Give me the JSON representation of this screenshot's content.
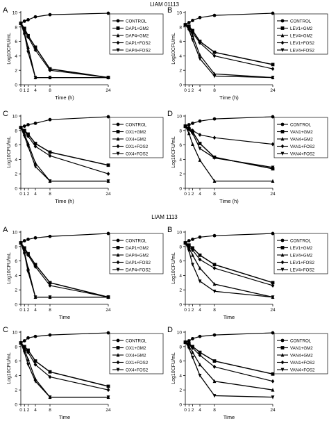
{
  "groups": [
    {
      "title": "LIAM 01113",
      "xlabel": "Time (h)"
    },
    {
      "title": "LIAM 1113",
      "xlabel": "Time"
    }
  ],
  "chart_data": [
    {
      "type": "line",
      "panel_label": "A",
      "xlabel": "Time (h)",
      "ylabel": "Log10CFU/mL",
      "x": [
        0,
        1,
        2,
        4,
        8,
        24
      ],
      "xticks": [
        "0",
        "1",
        "2",
        "4",
        "8",
        "24"
      ],
      "xlim": [
        0,
        24
      ],
      "ylim": [
        0,
        10
      ],
      "yticks": [
        0,
        2,
        4,
        6,
        8,
        10
      ],
      "series": [
        {
          "name": "CONTROL",
          "values": [
            8.5,
            8.8,
            9.0,
            9.4,
            9.7,
            9.9
          ]
        },
        {
          "name": "DAP1+GM2",
          "values": [
            8.5,
            7.8,
            6.8,
            5.2,
            2.2,
            1.0
          ]
        },
        {
          "name": "DAP4+GM2",
          "values": [
            8.5,
            7.2,
            5.2,
            1.0,
            1.0,
            1.0
          ]
        },
        {
          "name": "DAP1+FOS2",
          "values": [
            8.5,
            7.6,
            6.6,
            4.8,
            2.0,
            1.0
          ]
        },
        {
          "name": "DAP4+FOS2",
          "values": [
            8.5,
            7.0,
            4.5,
            1.0,
            1.0,
            1.0
          ]
        }
      ]
    },
    {
      "type": "line",
      "panel_label": "B",
      "xlabel": "Time (h)",
      "ylabel": "Log10CFU/mL",
      "x": [
        0,
        1,
        2,
        4,
        8,
        24
      ],
      "xticks": [
        "0",
        "1",
        "2",
        "4",
        "8",
        "24"
      ],
      "xlim": [
        0,
        24
      ],
      "ylim": [
        0,
        10
      ],
      "yticks": [
        0,
        2,
        4,
        6,
        8,
        10
      ],
      "series": [
        {
          "name": "CONTROL",
          "values": [
            8.3,
            8.6,
            8.9,
            9.3,
            9.6,
            9.9
          ]
        },
        {
          "name": "LEV1+GM2",
          "values": [
            8.3,
            8.1,
            7.5,
            6.0,
            4.5,
            2.8
          ]
        },
        {
          "name": "LEV4+GM2",
          "values": [
            8.3,
            7.8,
            6.8,
            4.1,
            1.5,
            1.0
          ]
        },
        {
          "name": "LEV1+FOS2",
          "values": [
            8.3,
            8.0,
            7.2,
            5.8,
            4.0,
            2.2
          ]
        },
        {
          "name": "LEV4+FOS2",
          "values": [
            8.3,
            7.6,
            6.2,
            3.6,
            1.2,
            1.0
          ]
        }
      ]
    },
    {
      "type": "line",
      "panel_label": "C",
      "xlabel": "Time (h)",
      "ylabel": "Log10CFU/mL",
      "x": [
        0,
        1,
        2,
        4,
        8,
        24
      ],
      "xticks": [
        "0",
        "1",
        "2",
        "4",
        "8",
        "24"
      ],
      "xlim": [
        0,
        24
      ],
      "ylim": [
        0,
        10
      ],
      "yticks": [
        0,
        2,
        4,
        6,
        8,
        10
      ],
      "series": [
        {
          "name": "CONTROL",
          "values": [
            8.4,
            8.6,
            8.8,
            9.0,
            9.5,
            9.9
          ]
        },
        {
          "name": "OX1+GM2",
          "values": [
            8.4,
            8.0,
            7.5,
            6.2,
            5.0,
            3.2
          ]
        },
        {
          "name": "OX4+GM2",
          "values": [
            8.4,
            7.5,
            6.2,
            3.5,
            1.0,
            1.0
          ]
        },
        {
          "name": "OX1+FOS2",
          "values": [
            8.4,
            7.9,
            7.2,
            5.8,
            4.5,
            2.0
          ]
        },
        {
          "name": "OX4+FOS2",
          "values": [
            8.4,
            7.2,
            5.8,
            3.0,
            1.0,
            1.0
          ]
        }
      ]
    },
    {
      "type": "line",
      "panel_label": "D",
      "xlabel": "Time (h)",
      "ylabel": "Log10CFU/mL",
      "x": [
        0,
        1,
        2,
        4,
        8,
        24
      ],
      "xticks": [
        "0",
        "1",
        "2",
        "4",
        "8",
        "24"
      ],
      "xlim": [
        0,
        24
      ],
      "ylim": [
        0,
        10
      ],
      "yticks": [
        0,
        2,
        4,
        6,
        8,
        10
      ],
      "series": [
        {
          "name": "CONTROL",
          "values": [
            8.6,
            8.8,
            9.0,
            9.3,
            9.6,
            9.9
          ]
        },
        {
          "name": "VAN1+GM2",
          "values": [
            8.6,
            8.2,
            7.8,
            6.2,
            4.3,
            2.7
          ]
        },
        {
          "name": "VAN4+GM2",
          "values": [
            8.6,
            7.6,
            6.1,
            3.9,
            1.0,
            1.0
          ]
        },
        {
          "name": "VAN1+FOS2",
          "values": [
            8.6,
            8.4,
            8.0,
            7.4,
            7.0,
            6.1
          ]
        },
        {
          "name": "VAN4+FOS2",
          "values": [
            8.6,
            8.1,
            7.6,
            5.5,
            4.2,
            2.9
          ]
        }
      ]
    },
    {
      "type": "line",
      "panel_label": "A",
      "xlabel": "Time",
      "ylabel": "Log10CFU/mL",
      "x": [
        0,
        1,
        2,
        4,
        8,
        24
      ],
      "xticks": [
        "0",
        "1",
        "2",
        "4",
        "8",
        "24"
      ],
      "xlim": [
        0,
        24
      ],
      "ylim": [
        0,
        10
      ],
      "yticks": [
        0,
        2,
        4,
        6,
        8,
        10
      ],
      "series": [
        {
          "name": "CONTROL",
          "values": [
            8.5,
            8.8,
            9.0,
            9.2,
            9.4,
            9.8
          ]
        },
        {
          "name": "DAP1+GM2",
          "values": [
            8.5,
            7.8,
            7.0,
            5.5,
            3.0,
            1.0
          ]
        },
        {
          "name": "DAP4+GM2",
          "values": [
            8.5,
            7.2,
            5.0,
            1.0,
            1.0,
            1.0
          ]
        },
        {
          "name": "DAP1+FOS2",
          "values": [
            8.5,
            7.6,
            6.8,
            5.2,
            2.6,
            1.0
          ]
        },
        {
          "name": "DAP4+FOS2",
          "values": [
            8.5,
            7.0,
            4.5,
            1.0,
            1.0,
            1.0
          ]
        }
      ]
    },
    {
      "type": "line",
      "panel_label": "B",
      "xlabel": "Time",
      "ylabel": "Log10CFU/mL",
      "x": [
        0,
        1,
        2,
        4,
        8,
        24
      ],
      "xticks": [
        "0",
        "1",
        "2",
        "4",
        "8",
        "24"
      ],
      "xlim": [
        0,
        24
      ],
      "ylim": [
        0,
        10
      ],
      "yticks": [
        0,
        2,
        4,
        6,
        8,
        10
      ],
      "series": [
        {
          "name": "CONTROL",
          "values": [
            8.5,
            8.8,
            9.0,
            9.3,
            9.5,
            9.8
          ]
        },
        {
          "name": "LEV1+GM2",
          "values": [
            8.5,
            8.2,
            7.8,
            6.8,
            5.5,
            3.0
          ]
        },
        {
          "name": "LEV4+GM2",
          "values": [
            8.5,
            7.8,
            6.8,
            5.0,
            2.8,
            1.0
          ]
        },
        {
          "name": "LEV1+FOS2",
          "values": [
            8.5,
            8.0,
            7.5,
            6.2,
            5.0,
            2.6
          ]
        },
        {
          "name": "LEV4+FOS2",
          "values": [
            8.5,
            7.4,
            5.5,
            3.2,
            1.8,
            1.0
          ]
        }
      ]
    },
    {
      "type": "line",
      "panel_label": "C",
      "xlabel": "Time",
      "ylabel": "Log10CFU/mL",
      "x": [
        0,
        1,
        2,
        4,
        8,
        24
      ],
      "xticks": [
        "0",
        "1",
        "2",
        "4",
        "8",
        "24"
      ],
      "xlim": [
        0,
        24
      ],
      "ylim": [
        0,
        10
      ],
      "yticks": [
        0,
        2,
        4,
        6,
        8,
        10
      ],
      "series": [
        {
          "name": "CONTROL",
          "values": [
            8.5,
            8.8,
            9.2,
            9.4,
            9.6,
            9.9
          ]
        },
        {
          "name": "OX1+GM2",
          "values": [
            8.5,
            8.0,
            7.5,
            6.0,
            4.5,
            2.5
          ]
        },
        {
          "name": "OX4+GM2",
          "values": [
            8.5,
            7.6,
            6.2,
            3.5,
            1.0,
            1.0
          ]
        },
        {
          "name": "OX1+FOS2",
          "values": [
            8.5,
            7.8,
            7.2,
            5.5,
            3.8,
            2.0
          ]
        },
        {
          "name": "OX4+FOS2",
          "values": [
            8.5,
            7.2,
            5.5,
            3.2,
            1.0,
            1.0
          ]
        }
      ]
    },
    {
      "type": "line",
      "panel_label": "D",
      "xlabel": "Time",
      "ylabel": "Log10CFU/mL",
      "x": [
        0,
        1,
        2,
        4,
        8,
        24
      ],
      "xticks": [
        "0",
        "1",
        "2",
        "4",
        "8",
        "24"
      ],
      "xlim": [
        0,
        24
      ],
      "ylim": [
        0,
        10
      ],
      "yticks": [
        0,
        2,
        4,
        6,
        8,
        10
      ],
      "series": [
        {
          "name": "CONTROL",
          "values": [
            8.6,
            8.8,
            9.1,
            9.4,
            9.6,
            9.9
          ]
        },
        {
          "name": "VAN1+GM2",
          "values": [
            8.6,
            8.4,
            8.0,
            7.2,
            6.0,
            4.2
          ]
        },
        {
          "name": "VAN4+GM2",
          "values": [
            8.6,
            8.0,
            7.2,
            5.5,
            3.2,
            2.0
          ]
        },
        {
          "name": "VAN1+FOS2",
          "values": [
            8.6,
            8.3,
            7.8,
            6.8,
            5.2,
            3.2
          ]
        },
        {
          "name": "VAN4+FOS2",
          "values": [
            8.6,
            7.8,
            6.5,
            4.0,
            1.2,
            1.0
          ]
        }
      ]
    }
  ]
}
